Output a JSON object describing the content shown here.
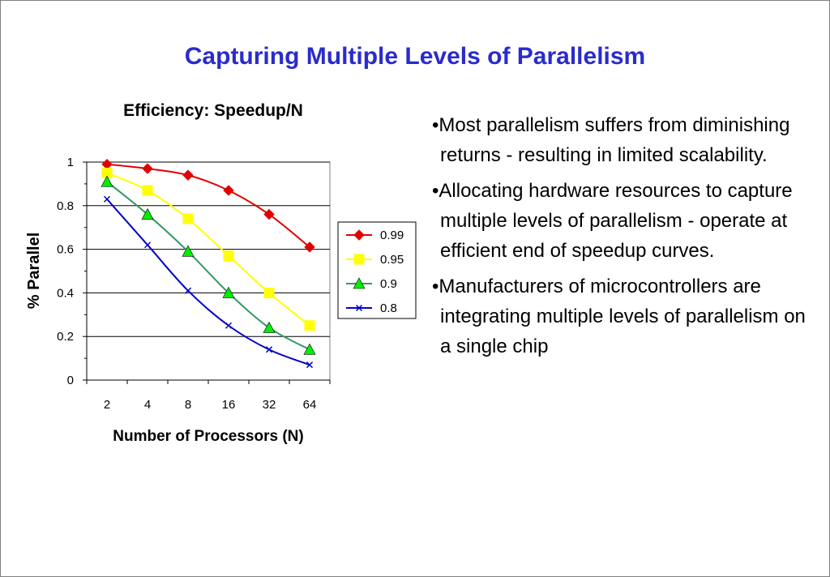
{
  "slide": {
    "title": "Capturing Multiple Levels of Parallelism",
    "bullet_char": "•",
    "bullets": [
      "Most parallelism suffers from diminishing returns - resulting in limited scalability.",
      "Allocating hardware resources to capture multiple levels of parallelism - operate at efficient end of speedup curves.",
      "Manufacturers of microcontrollers are integrating multiple levels of parallelism on a single chip"
    ],
    "title_color": "#2b2bcc"
  },
  "chart_data": {
    "type": "line",
    "title": "Efficiency: Speedup/N",
    "xlabel": "Number of Processors (N)",
    "ylabel": "% Parallel",
    "categories": [
      "2",
      "4",
      "8",
      "16",
      "32",
      "64"
    ],
    "ylim": [
      0,
      1
    ],
    "yticks": [
      "0",
      "0.2",
      "0.4",
      "0.6",
      "0.8",
      "1"
    ],
    "grid": true,
    "legend": "right",
    "series": [
      {
        "name": "0.99",
        "values": [
          0.99,
          0.97,
          0.94,
          0.87,
          0.76,
          0.61
        ],
        "color": "#e00000",
        "marker": "diamond"
      },
      {
        "name": "0.95",
        "values": [
          0.95,
          0.87,
          0.74,
          0.57,
          0.4,
          0.25
        ],
        "color": "#ffff00",
        "marker": "square"
      },
      {
        "name": "0.9",
        "values": [
          0.91,
          0.76,
          0.59,
          0.4,
          0.24,
          0.14
        ],
        "color": "#339966",
        "marker": "triangle"
      },
      {
        "name": "0.8",
        "values": [
          0.83,
          0.62,
          0.41,
          0.25,
          0.14,
          0.07
        ],
        "color": "#0000cc",
        "marker": "x"
      }
    ]
  }
}
